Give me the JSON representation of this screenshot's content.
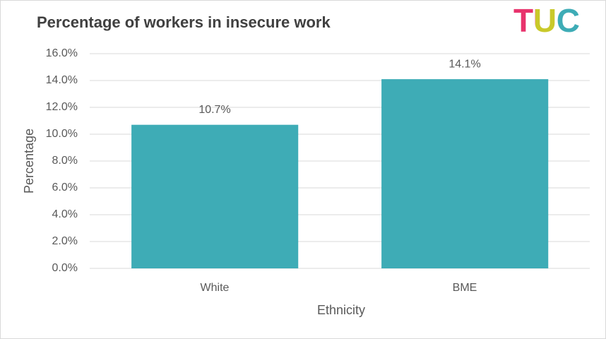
{
  "chart_data": {
    "type": "bar",
    "title": "Percentage of workers in insecure work",
    "logo": "TUC",
    "x_label": "Ethnicity",
    "y_label": "Percentage",
    "categories": [
      "White",
      "BME"
    ],
    "values": [
      10.7,
      14.1
    ],
    "value_labels": [
      "10.7%",
      "14.1%"
    ],
    "color": "#3eacb6",
    "ylim": [
      0,
      16
    ],
    "yticks": [
      {
        "value": 0,
        "label": "0.0%"
      },
      {
        "value": 2,
        "label": "2.0%"
      },
      {
        "value": 4,
        "label": "4.0%"
      },
      {
        "value": 6,
        "label": "6.0%"
      },
      {
        "value": 8,
        "label": "8.0%"
      },
      {
        "value": 10,
        "label": "10.0%"
      },
      {
        "value": 12,
        "label": "12.0%"
      },
      {
        "value": 14,
        "label": "14.0%"
      },
      {
        "value": 16,
        "label": "16.0%"
      }
    ],
    "grid": true
  }
}
